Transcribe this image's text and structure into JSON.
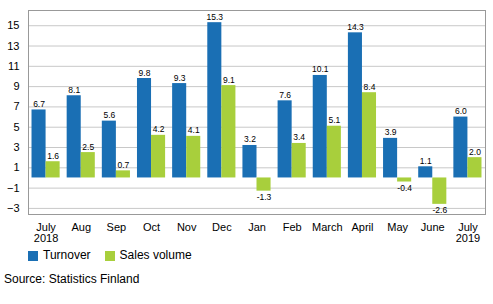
{
  "chart_data": {
    "type": "bar",
    "categories": [
      "July\n2018",
      "Aug",
      "Sep",
      "Oct",
      "Nov",
      "Dec",
      "Jan",
      "Feb",
      "March",
      "April",
      "May",
      "June",
      "July\n2019"
    ],
    "series": [
      {
        "name": "Turnover",
        "color": "#1a6fb4",
        "values": [
          6.7,
          8.1,
          5.6,
          9.8,
          9.3,
          15.3,
          3.2,
          7.6,
          10.1,
          14.3,
          3.9,
          1.1,
          6.0
        ],
        "value_labels": [
          "6.7",
          "8.1",
          "5.6",
          "9.8",
          "9.3",
          "15.3",
          "3.2",
          "7.6",
          "10.1",
          "14.3",
          "3.9",
          "1.1",
          "6.0"
        ]
      },
      {
        "name": "Sales volume",
        "color": "#a8cf3c",
        "values": [
          1.6,
          2.5,
          0.7,
          4.2,
          4.1,
          9.1,
          -1.3,
          3.4,
          5.1,
          8.4,
          -0.4,
          -2.6,
          2.0
        ],
        "value_labels": [
          "1.6",
          "2.5",
          "0.7",
          "4.2",
          "4.1",
          "9.1",
          "-1.3",
          "3.4",
          "5.1",
          "8.4",
          "-0.4",
          "-2.6",
          "2.0"
        ]
      }
    ],
    "ylim": [
      -3.6,
      16.5
    ],
    "yticks": [
      -3,
      -1,
      1,
      3,
      5,
      7,
      9,
      11,
      13,
      15
    ],
    "grid": true,
    "data_labels": true,
    "legend": "bottom-left",
    "caption": "Source: Statistics Finland"
  }
}
